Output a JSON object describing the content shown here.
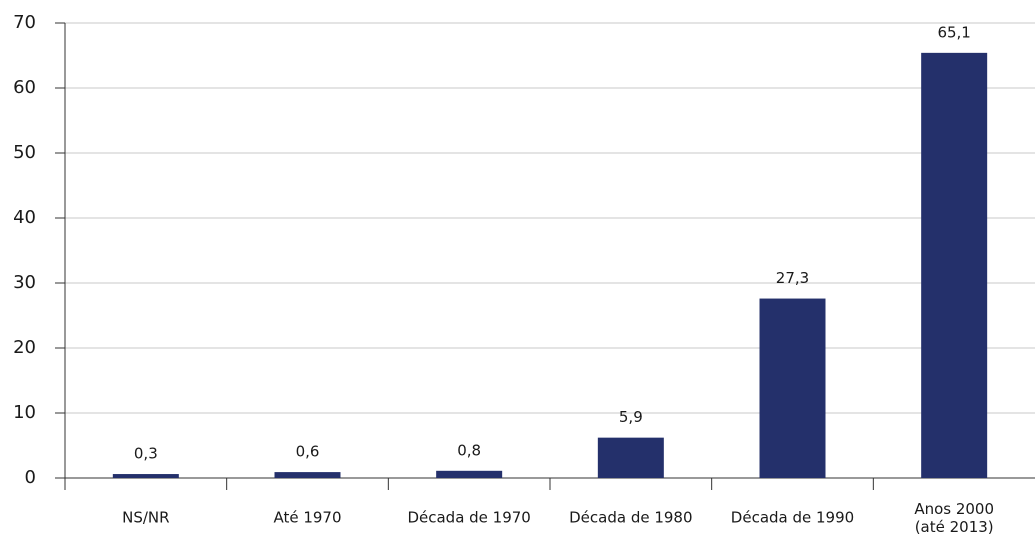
{
  "chart_data": {
    "type": "bar",
    "categories": [
      "NS/NR",
      "Até 1970",
      "Década de 1970",
      "Década de 1980",
      "Década de 1990",
      "Anos 2000\n(até 2013)"
    ],
    "values": [
      0.3,
      0.6,
      0.8,
      5.9,
      27.3,
      65.1
    ],
    "value_labels": [
      "0,3",
      "0,6",
      "0,8",
      "5,9",
      "27,3",
      "65,1"
    ],
    "color": "#24306b",
    "ylim": [
      0,
      70
    ],
    "yticks": [
      0,
      10,
      20,
      30,
      40,
      50,
      60,
      70
    ],
    "grid": true
  }
}
